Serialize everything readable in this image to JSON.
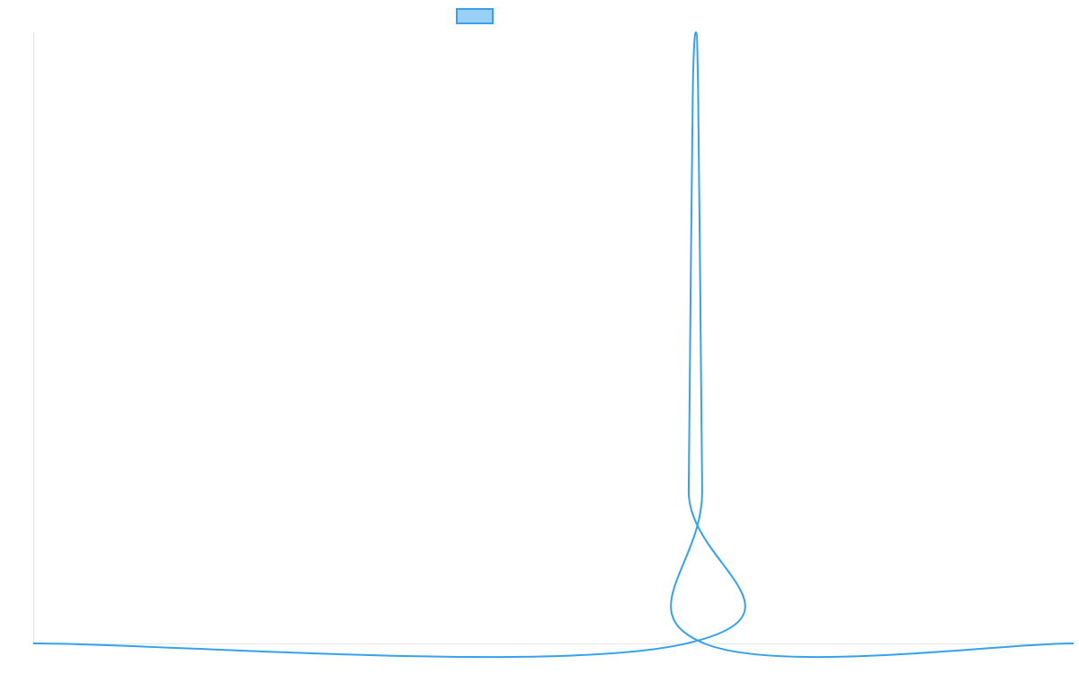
{
  "chart_data": {
    "type": "line",
    "title": "",
    "xlabel": "",
    "ylabel": "",
    "grid": false,
    "legend": "top-center",
    "series": [
      {
        "name": "",
        "color": "#36a2eb",
        "fill_color": "#9ad0f5",
        "points": [
          {
            "x": 0,
            "y": 0
          },
          {
            "x": 628,
            "y": 0
          },
          {
            "x": 630,
            "y": 0.25
          },
          {
            "x": 632,
            "y": 0.6
          },
          {
            "x": 634,
            "y": 0.91
          },
          {
            "x": 637,
            "y": 1.0
          },
          {
            "x": 639,
            "y": 0.91
          },
          {
            "x": 641,
            "y": 0.6
          },
          {
            "x": 643,
            "y": 0.25
          },
          {
            "x": 645,
            "y": 0
          },
          {
            "x": 1000,
            "y": 0
          }
        ]
      }
    ],
    "xlim": [
      0,
      1000
    ],
    "ylim": [
      0,
      1
    ]
  }
}
